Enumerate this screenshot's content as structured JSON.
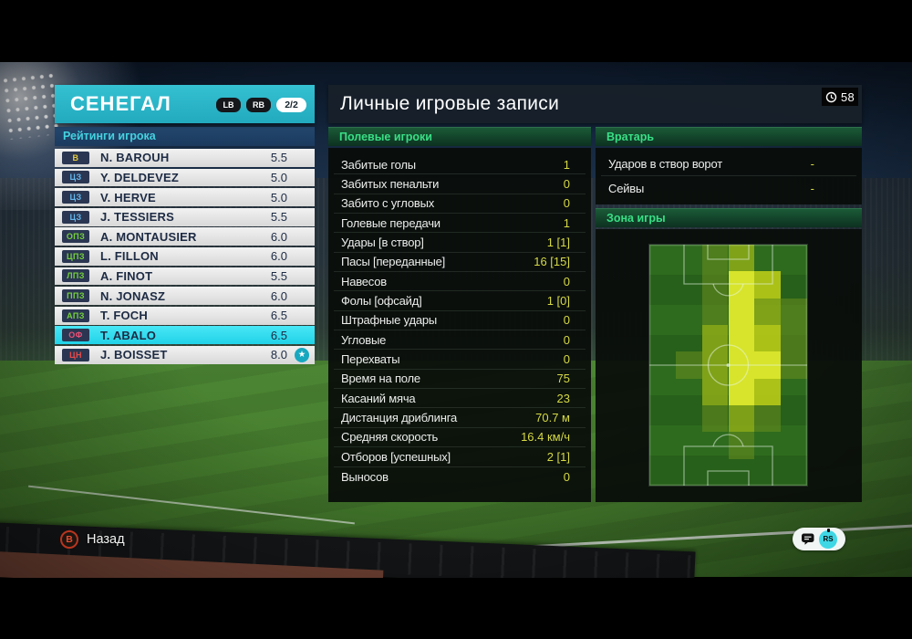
{
  "team_panel": {
    "team_name": "СЕНЕГАЛ",
    "lb_label": "LB",
    "rb_label": "RB",
    "page_indicator": "2/2",
    "section_title": "Рейтинги игрока",
    "players": [
      {
        "pos": "В",
        "pos_color": "#e6cc3d",
        "name": "N. BAROUH",
        "rating": "5.5",
        "selected": false,
        "star": false
      },
      {
        "pos": "ЦЗ",
        "pos_color": "#64b6ec",
        "name": "Y. DELDEVEZ",
        "rating": "5.0",
        "selected": false,
        "star": false
      },
      {
        "pos": "ЦЗ",
        "pos_color": "#64b6ec",
        "name": "V. HERVE",
        "rating": "5.0",
        "selected": false,
        "star": false
      },
      {
        "pos": "ЦЗ",
        "pos_color": "#64b6ec",
        "name": "J. TESSIERS",
        "rating": "5.5",
        "selected": false,
        "star": false
      },
      {
        "pos": "ОПЗ",
        "pos_color": "#74d13c",
        "name": "A. MONTAUSIER",
        "rating": "6.0",
        "selected": false,
        "star": false
      },
      {
        "pos": "ЦПЗ",
        "pos_color": "#74d13c",
        "name": "L. FILLON",
        "rating": "6.0",
        "selected": false,
        "star": false
      },
      {
        "pos": "ЛПЗ",
        "pos_color": "#74d13c",
        "name": "A. FINOT",
        "rating": "5.5",
        "selected": false,
        "star": false
      },
      {
        "pos": "ППЗ",
        "pos_color": "#74d13c",
        "name": "N. JONASZ",
        "rating": "6.0",
        "selected": false,
        "star": false
      },
      {
        "pos": "АПЗ",
        "pos_color": "#74d13c",
        "name": "T. FOCH",
        "rating": "6.5",
        "selected": false,
        "star": false
      },
      {
        "pos": "ОФ",
        "pos_color": "#ef5076",
        "name": "T. ABALO",
        "rating": "6.5",
        "selected": true,
        "star": false
      },
      {
        "pos": "ЦН",
        "pos_color": "#ea4a4a",
        "name": "J. BOISSET",
        "rating": "8.0",
        "selected": false,
        "star": true
      }
    ]
  },
  "records_panel": {
    "title": "Личные игровые записи",
    "clock_value": "58",
    "field_section": {
      "title": "Полевые игроки",
      "stats": [
        [
          "Забитые голы",
          "1"
        ],
        [
          "Забитых пенальти",
          "0"
        ],
        [
          "Забито с угловых",
          "0"
        ],
        [
          "Голевые передачи",
          "1"
        ],
        [
          "Удары [в створ]",
          "1 [1]"
        ],
        [
          "Пасы [переданные]",
          "16 [15]"
        ],
        [
          "Навесов",
          "0"
        ],
        [
          "Фолы [офсайд]",
          "1 [0]"
        ],
        [
          "Штрафные удары",
          "0"
        ],
        [
          "Угловые",
          "0"
        ],
        [
          "Перехваты",
          "0"
        ],
        [
          "Время на поле",
          "75"
        ],
        [
          "Касаний мяча",
          "23"
        ],
        [
          "Дистанция дриблинга",
          "70.7 м"
        ],
        [
          "Средняя скорость",
          "16.4 км/ч"
        ],
        [
          "Отборов [успешных]",
          "2 [1]"
        ],
        [
          "Выносов",
          "0"
        ]
      ]
    },
    "gk_section": {
      "title": "Вратарь",
      "stats": [
        [
          "Ударов в створ ворот",
          "-"
        ],
        [
          "Сейвы",
          "-"
        ]
      ]
    },
    "zone_section": {
      "title": "Зона игры"
    }
  },
  "footer": {
    "back_button_glyph": "B",
    "back_label": "Назад",
    "stick_label": "RS"
  },
  "icons": {
    "star": "★"
  },
  "colors": {
    "accent_cyan": "#2bb6c8",
    "selected_row": "#35e2f2",
    "value_yellow": "#d6d944",
    "section_green": "#38df85",
    "ratings_bar_blue": "#1e4168"
  },
  "chart_data": {
    "type": "heatmap",
    "title": "Зона игры",
    "description": "Зона активности игрока на вертикальном поле; 6 колонок × 9 рядов; интенсивность 0 (нет) – 4 (максимум)",
    "columns": 6,
    "rows": 9,
    "grid": [
      [
        0,
        0,
        1,
        2,
        0,
        0
      ],
      [
        0,
        0,
        1,
        4,
        3,
        0
      ],
      [
        0,
        0,
        1,
        4,
        2,
        1
      ],
      [
        0,
        0,
        2,
        4,
        3,
        1
      ],
      [
        0,
        1,
        2,
        4,
        4,
        1
      ],
      [
        0,
        0,
        2,
        4,
        3,
        0
      ],
      [
        0,
        0,
        1,
        2,
        1,
        0
      ],
      [
        0,
        0,
        0,
        1,
        0,
        0
      ],
      [
        0,
        0,
        0,
        0,
        0,
        0
      ]
    ],
    "palette_css": [
      "transparent",
      "rgba(106,142,30,0.55)",
      "rgba(148,176,24,0.8)",
      "rgba(186,204,24,0.9)",
      "rgba(223,233,44,0.96)"
    ]
  }
}
